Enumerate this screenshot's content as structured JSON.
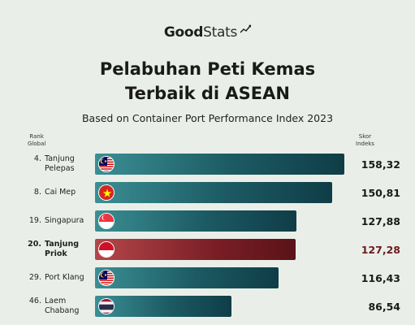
{
  "brand": {
    "part1": "Good",
    "part2": "Stats"
  },
  "header_rank": [
    "Rank",
    "Global"
  ],
  "header_score": [
    "Skor",
    "Indeks"
  ],
  "chart_data": {
    "type": "bar",
    "orientation": "horizontal",
    "title": "Pelabuhan Peti Kemas Terbaik di ASEAN",
    "title_lines": [
      "Pelabuhan Peti Kemas",
      "Terbaik di ASEAN"
    ],
    "subtitle": "Based on Container Port Performance Index 2023",
    "categories": [
      "Tanjung Pelepas",
      "Cai Mep",
      "Singapura",
      "Tanjung Priok",
      "Port Klang",
      "Laem Chabang"
    ],
    "rows": [
      {
        "rank": "4.",
        "name_lines": [
          "Tanjung",
          "Pelepas"
        ],
        "value": 158.32,
        "label": "158,32",
        "flag": "malaysia",
        "highlight": false
      },
      {
        "rank": "8.",
        "name_lines": [
          "Cai Mep"
        ],
        "value": 150.81,
        "label": "150,81",
        "flag": "vietnam",
        "highlight": false
      },
      {
        "rank": "19.",
        "name_lines": [
          "Singapura"
        ],
        "value": 127.88,
        "label": "127,88",
        "flag": "singapore",
        "highlight": false
      },
      {
        "rank": "20.",
        "name_lines": [
          "Tanjung",
          "Priok"
        ],
        "value": 127.28,
        "label": "127,28",
        "flag": "indonesia",
        "highlight": true
      },
      {
        "rank": "29.",
        "name_lines": [
          "Port Klang"
        ],
        "value": 116.43,
        "label": "116,43",
        "flag": "malaysia",
        "highlight": false
      },
      {
        "rank": "46.",
        "name_lines": [
          "Laem",
          "Chabang"
        ],
        "value": 86.54,
        "label": "86,54",
        "flag": "thailand",
        "highlight": false
      }
    ],
    "colors": {
      "bar": "#1c5a63",
      "highlight_bar": "#7a1e25",
      "highlight_text": "#6e1a20"
    },
    "legend": "none",
    "grid": false
  }
}
